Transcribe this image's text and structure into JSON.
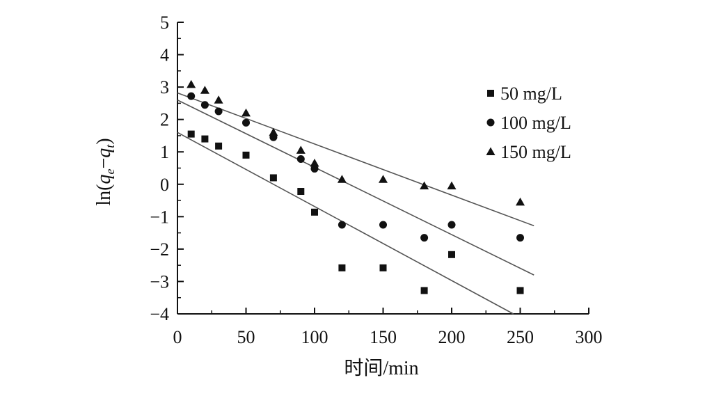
{
  "chart_data": {
    "type": "scatter",
    "xlabel": "时间/min",
    "ylabel": {
      "prefix": "ln(",
      "q1": "q",
      "s1": "e",
      "mid": "−",
      "q2": "q",
      "s2": "t",
      "suffix": ")"
    },
    "xlim": [
      0,
      300
    ],
    "ylim": [
      -4,
      5
    ],
    "x_ticks": [
      "0",
      "50",
      "100",
      "150",
      "200",
      "250",
      "300"
    ],
    "y_ticks": [
      "5",
      "4",
      "3",
      "2",
      "1",
      "0",
      "−1",
      "−2",
      "−3",
      "−4"
    ],
    "grid": false,
    "legend_position": "right",
    "series": [
      {
        "name": "50 mg/L",
        "marker": "square",
        "x": [
          10,
          20,
          30,
          50,
          70,
          90,
          100,
          120,
          150,
          180,
          200,
          250
        ],
        "y": [
          1.55,
          1.4,
          1.18,
          0.9,
          0.2,
          -0.22,
          -0.86,
          -2.58,
          -2.58,
          -3.28,
          -2.17,
          -3.28
        ],
        "fit": {
          "x": [
            0,
            245
          ],
          "y": [
            1.6,
            -4.0
          ]
        }
      },
      {
        "name": "100 mg/L",
        "marker": "circle",
        "x": [
          10,
          20,
          30,
          50,
          70,
          90,
          100,
          120,
          150,
          180,
          200,
          250
        ],
        "y": [
          2.72,
          2.45,
          2.25,
          1.9,
          1.45,
          0.78,
          0.48,
          -1.25,
          -1.25,
          -1.65,
          -1.25,
          -1.65
        ],
        "fit": {
          "x": [
            0,
            260
          ],
          "y": [
            2.6,
            -2.8
          ]
        }
      },
      {
        "name": "150 mg/L",
        "marker": "triangle",
        "x": [
          10,
          20,
          30,
          50,
          70,
          90,
          100,
          120,
          150,
          180,
          200,
          250
        ],
        "y": [
          3.08,
          2.9,
          2.6,
          2.2,
          1.6,
          1.05,
          0.65,
          0.15,
          0.15,
          -0.05,
          -0.05,
          -0.55
        ],
        "fit": {
          "x": [
            0,
            260
          ],
          "y": [
            2.82,
            -1.28
          ]
        }
      }
    ]
  }
}
